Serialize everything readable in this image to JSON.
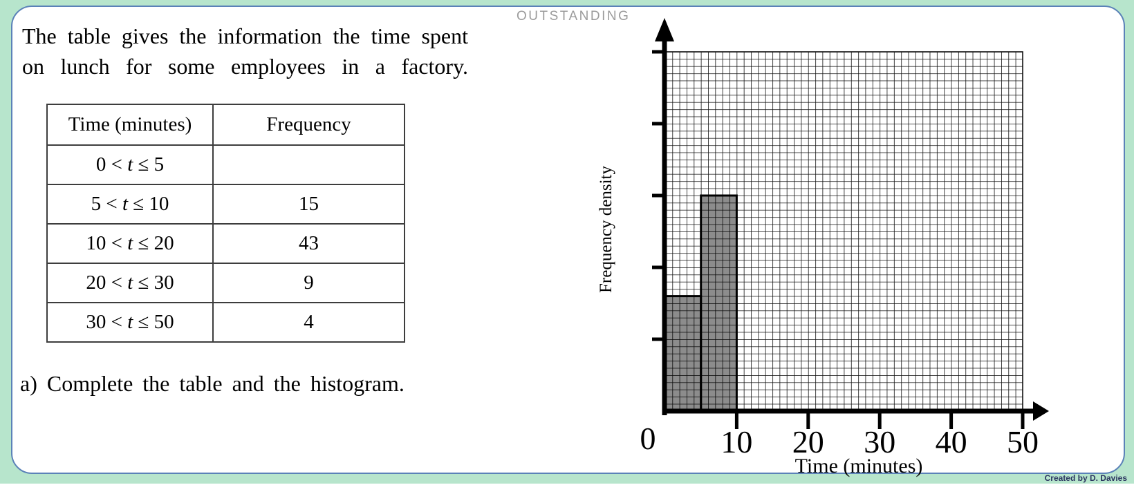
{
  "page": {
    "watermark": "OUTSTANDING",
    "credit": "Created by D. Davies"
  },
  "intro": {
    "line1": "The table gives the information the time spent",
    "line2": "on lunch for some employees in a factory."
  },
  "prompt": "a) Complete the table and the histogram.",
  "table": {
    "headers": [
      "Time (minutes)",
      "Frequency"
    ],
    "rows": [
      {
        "pre": "0 < ",
        "var": "t",
        "post": " ≤ 5",
        "frequency": ""
      },
      {
        "pre": "5 < ",
        "var": "t",
        "post": " ≤ 10",
        "frequency": "15"
      },
      {
        "pre": "10 < ",
        "var": "t",
        "post": " ≤ 20",
        "frequency": "43"
      },
      {
        "pre": "20 < ",
        "var": "t",
        "post": " ≤ 30",
        "frequency": "9"
      },
      {
        "pre": "30 < ",
        "var": "t",
        "post": " ≤ 50",
        "frequency": "4"
      }
    ]
  },
  "chart_data": {
    "type": "bar",
    "subtype": "histogram",
    "title": "",
    "xlabel": "Time (minutes)",
    "ylabel": "Frequency density",
    "origin_label": "0",
    "xlim": [
      0,
      50
    ],
    "ylim": [
      0,
      5
    ],
    "x_ticks": [
      10,
      20,
      30,
      40,
      50
    ],
    "x_tick_labels": [
      "10",
      "20",
      "30",
      "40",
      "50"
    ],
    "y_ticks": [
      1,
      2,
      3,
      4,
      5
    ],
    "y_tick_labels": [
      "",
      "",
      "",
      "",
      ""
    ],
    "grid": "on, 1-unit small squares, 50 x 50 cells",
    "legend": "none",
    "bars": [
      {
        "class": "0 < t ≤ 5",
        "x0": 0,
        "x1": 5,
        "frequency_density": 1.6
      },
      {
        "class": "5 < t ≤ 10",
        "x0": 5,
        "x1": 10,
        "frequency_density": 3
      }
    ],
    "colors": {
      "bar_fill": "#8c8c8c",
      "bar_border": "#000000",
      "grid_line": "#111111"
    }
  },
  "colors": {
    "background": "#b7e5cc",
    "card_border": "#5b82b8",
    "card_bg": "#ffffff"
  }
}
